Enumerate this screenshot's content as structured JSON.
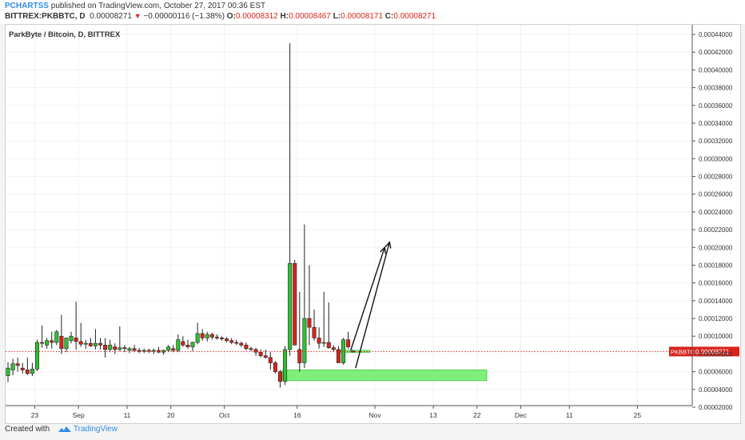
{
  "header": {
    "author": "PCHARTSS",
    "published": "published on TradingView.com, October 27, 2017 00:36 EST",
    "symbol": "BITTREX:PKBBTC, D",
    "last": "0.00008271",
    "arrow": "▼",
    "change": "−0.00000116 (−1.38%)",
    "o_label": "O:",
    "o_value": "0.00008312",
    "h_label": "H:",
    "h_value": "0.00008467",
    "l_label": "L:",
    "l_value": "0.00008171",
    "c_label": "C:",
    "c_value": "0.00008271"
  },
  "footer": {
    "created": "Created with",
    "brand": "TradingView"
  },
  "colors": {
    "up": "#30c030",
    "down": "#d8241c",
    "zone": "#7ef07a",
    "price_tag": "#d8241c",
    "accent": "#2f8de4"
  },
  "chart_data": {
    "type": "candlestick",
    "title": "ParkByte / Bitcoin, D, BITTREX",
    "current_price": 8.271e-05,
    "current_price_label": "0.00008271",
    "current_price_symbol": "PKBBTC",
    "ylim": [
      1.4e-05,
      0.000445
    ],
    "y_ticks": [
      2e-05,
      4e-05,
      6e-05,
      8e-05,
      0.0001,
      0.00012,
      0.00014,
      0.00016,
      0.00018,
      0.0002,
      0.00022,
      0.00024,
      0.00026,
      0.00028,
      0.0003,
      0.00032,
      0.00034,
      0.00036,
      0.00038,
      0.0004,
      0.00042,
      0.00044
    ],
    "y_tick_labels": [
      "0.00002000",
      "0.00004000",
      "0.00006000",
      "0.00008000",
      "0.00010000",
      "0.00012000",
      "0.00014000",
      "0.00016000",
      "0.00018000",
      "0.00020000",
      "0.00022000",
      "0.00024000",
      "0.00026000",
      "0.00028000",
      "0.00030000",
      "0.00032000",
      "0.00034000",
      "0.00036000",
      "0.00038000",
      "0.00040000",
      "0.00042000",
      "0.00044000"
    ],
    "x_ticks": [
      {
        "date": "2017-08-23",
        "label": "23"
      },
      {
        "date": "2017-09-01",
        "label": "Sep"
      },
      {
        "date": "2017-09-11",
        "label": "11"
      },
      {
        "date": "2017-09-20",
        "label": "20"
      },
      {
        "date": "2017-10-01",
        "label": "Oct"
      },
      {
        "date": "2017-10-16",
        "label": "16"
      },
      {
        "date": "2017-11-01",
        "label": "Nov"
      },
      {
        "date": "2017-11-13",
        "label": "13"
      },
      {
        "date": "2017-11-22",
        "label": "22"
      },
      {
        "date": "2017-12-01",
        "label": "Dec"
      },
      {
        "date": "2017-12-11",
        "label": "11"
      },
      {
        "date": "2017-12-25",
        "label": "25"
      }
    ],
    "xlim": [
      "2017-08-17",
      "2017-12-25"
    ],
    "candles": [
      {
        "date": "2017-08-17",
        "o": 5.55e-05,
        "h": 7.05e-05,
        "l": 4.85e-05,
        "c": 6.4e-05
      },
      {
        "date": "2017-08-18",
        "o": 6.2e-05,
        "h": 7.45e-05,
        "l": 5.6e-05,
        "c": 6.9e-05
      },
      {
        "date": "2017-08-19",
        "o": 6.9e-05,
        "h": 7.6e-05,
        "l": 6e-05,
        "c": 6.7e-05
      },
      {
        "date": "2017-08-20",
        "o": 6.4e-05,
        "h": 7e-05,
        "l": 5.8e-05,
        "c": 6.2e-05
      },
      {
        "date": "2017-08-21",
        "o": 6.2e-05,
        "h": 7.6e-05,
        "l": 5.6e-05,
        "c": 5.8e-05
      },
      {
        "date": "2017-08-22",
        "o": 5.8e-05,
        "h": 7e-05,
        "l": 5.5e-05,
        "c": 6.3e-05
      },
      {
        "date": "2017-08-23",
        "o": 6.3e-05,
        "h": 9.6e-05,
        "l": 6.1e-05,
        "c": 9.3e-05
      },
      {
        "date": "2017-08-24",
        "o": 9.3e-05,
        "h": 0.000112,
        "l": 8.7e-05,
        "c": 9.2e-05
      },
      {
        "date": "2017-08-25",
        "o": 9e-05,
        "h": 9.8e-05,
        "l": 8.6e-05,
        "c": 9.5e-05
      },
      {
        "date": "2017-08-26",
        "o": 9.5e-05,
        "h": 0.000105,
        "l": 8.6e-05,
        "c": 9.3e-05
      },
      {
        "date": "2017-08-27",
        "o": 9.3e-05,
        "h": 0.000107,
        "l": 9e-05,
        "c": 0.000105
      },
      {
        "date": "2017-08-28",
        "o": 0.0001,
        "h": 0.000124,
        "l": 8e-05,
        "c": 8.6e-05
      },
      {
        "date": "2017-08-29",
        "o": 8.6e-05,
        "h": 9.8e-05,
        "l": 8.2e-05,
        "c": 9.8e-05
      },
      {
        "date": "2017-08-30",
        "o": 9.5e-05,
        "h": 0.000105,
        "l": 9.2e-05,
        "c": 0.0001
      },
      {
        "date": "2017-08-31",
        "o": 9.8e-05,
        "h": 0.000139,
        "l": 8.5e-05,
        "c": 9.4e-05
      },
      {
        "date": "2017-09-01",
        "o": 9.4e-05,
        "h": 0.000115,
        "l": 8.8e-05,
        "c": 9.1e-05
      },
      {
        "date": "2017-09-02",
        "o": 9.1e-05,
        "h": 9.6e-05,
        "l": 8.6e-05,
        "c": 9.2e-05
      },
      {
        "date": "2017-09-03",
        "o": 9.2e-05,
        "h": 9.8e-05,
        "l": 8.8e-05,
        "c": 8.9e-05
      },
      {
        "date": "2017-09-04",
        "o": 8.9e-05,
        "h": 0.000108,
        "l": 8.5e-05,
        "c": 9.2e-05
      },
      {
        "date": "2017-09-05",
        "o": 9.2e-05,
        "h": 9.8e-05,
        "l": 8.5e-05,
        "c": 9e-05
      },
      {
        "date": "2017-09-06",
        "o": 9e-05,
        "h": 9.8e-05,
        "l": 7.6e-05,
        "c": 8.5e-05
      },
      {
        "date": "2017-09-07",
        "o": 8.5e-05,
        "h": 9.6e-05,
        "l": 8.2e-05,
        "c": 9e-05
      },
      {
        "date": "2017-09-08",
        "o": 8.8e-05,
        "h": 9.2e-05,
        "l": 8e-05,
        "c": 8.5e-05
      },
      {
        "date": "2017-09-09",
        "o": 8.5e-05,
        "h": 0.000111,
        "l": 8.3e-05,
        "c": 8.7e-05
      },
      {
        "date": "2017-09-10",
        "o": 8.7e-05,
        "h": 9e-05,
        "l": 8.2e-05,
        "c": 8.6e-05
      },
      {
        "date": "2017-09-11",
        "o": 8.4e-05,
        "h": 8.8e-05,
        "l": 8.1e-05,
        "c": 8.6e-05
      },
      {
        "date": "2017-09-12",
        "o": 8.6e-05,
        "h": 9e-05,
        "l": 8.2e-05,
        "c": 8.4e-05
      },
      {
        "date": "2017-09-13",
        "o": 8.4e-05,
        "h": 8.7e-05,
        "l": 8.1e-05,
        "c": 8.3e-05
      },
      {
        "date": "2017-09-14",
        "o": 8.3e-05,
        "h": 8.6e-05,
        "l": 8.1e-05,
        "c": 8.4e-05
      },
      {
        "date": "2017-09-15",
        "o": 8.4e-05,
        "h": 8.6e-05,
        "l": 8.1e-05,
        "c": 8.3e-05
      },
      {
        "date": "2017-09-16",
        "o": 8.3e-05,
        "h": 8.6e-05,
        "l": 8e-05,
        "c": 8.4e-05
      },
      {
        "date": "2017-09-17",
        "o": 8.4e-05,
        "h": 8.8e-05,
        "l": 8.1e-05,
        "c": 8.2e-05
      },
      {
        "date": "2017-09-18",
        "o": 8.2e-05,
        "h": 8.5e-05,
        "l": 7.9e-05,
        "c": 8.4e-05
      },
      {
        "date": "2017-09-19",
        "o": 8.4e-05,
        "h": 9e-05,
        "l": 8.2e-05,
        "c": 8.8e-05
      },
      {
        "date": "2017-09-20",
        "o": 8.6e-05,
        "h": 9e-05,
        "l": 8.2e-05,
        "c": 8.4e-05
      },
      {
        "date": "2017-09-21",
        "o": 8.4e-05,
        "h": 0.000102,
        "l": 8.2e-05,
        "c": 9.6e-05
      },
      {
        "date": "2017-09-22",
        "o": 9.4e-05,
        "h": 0.0001,
        "l": 8.8e-05,
        "c": 9e-05
      },
      {
        "date": "2017-09-23",
        "o": 9e-05,
        "h": 9.6e-05,
        "l": 8.6e-05,
        "c": 8.8e-05
      },
      {
        "date": "2017-09-24",
        "o": 8.8e-05,
        "h": 9.4e-05,
        "l": 8.3e-05,
        "c": 9.3e-05
      },
      {
        "date": "2017-09-25",
        "o": 9.3e-05,
        "h": 0.000115,
        "l": 9.1e-05,
        "c": 0.000103
      },
      {
        "date": "2017-09-26",
        "o": 0.000103,
        "h": 0.000108,
        "l": 9.5e-05,
        "c": 9.8e-05
      },
      {
        "date": "2017-09-27",
        "o": 9.8e-05,
        "h": 0.000105,
        "l": 9.4e-05,
        "c": 0.000102
      },
      {
        "date": "2017-09-28",
        "o": 0.000102,
        "h": 0.000104,
        "l": 9.6e-05,
        "c": 9.9e-05
      },
      {
        "date": "2017-09-29",
        "o": 9.9e-05,
        "h": 0.000102,
        "l": 9.6e-05,
        "c": 9.8e-05
      },
      {
        "date": "2017-09-30",
        "o": 9.8e-05,
        "h": 0.0001,
        "l": 9.5e-05,
        "c": 9.7e-05
      },
      {
        "date": "2017-10-01",
        "o": 9.7e-05,
        "h": 9.9e-05,
        "l": 9.3e-05,
        "c": 9.5e-05
      },
      {
        "date": "2017-10-02",
        "o": 9.5e-05,
        "h": 9.8e-05,
        "l": 9.1e-05,
        "c": 9.3e-05
      },
      {
        "date": "2017-10-03",
        "o": 9.3e-05,
        "h": 9.6e-05,
        "l": 9e-05,
        "c": 9.2e-05
      },
      {
        "date": "2017-10-04",
        "o": 9.2e-05,
        "h": 9.4e-05,
        "l": 8.8e-05,
        "c": 9e-05
      },
      {
        "date": "2017-10-05",
        "o": 9e-05,
        "h": 9.3e-05,
        "l": 8.4e-05,
        "c": 8.6e-05
      },
      {
        "date": "2017-10-06",
        "o": 8.6e-05,
        "h": 8.8e-05,
        "l": 8.3e-05,
        "c": 8.5e-05
      },
      {
        "date": "2017-10-07",
        "o": 8.5e-05,
        "h": 8.7e-05,
        "l": 7.8e-05,
        "c": 8.2e-05
      },
      {
        "date": "2017-10-08",
        "o": 8.2e-05,
        "h": 8.5e-05,
        "l": 7.6e-05,
        "c": 7.8e-05
      },
      {
        "date": "2017-10-09",
        "o": 7.8e-05,
        "h": 8.5e-05,
        "l": 7.5e-05,
        "c": 7.6e-05
      },
      {
        "date": "2017-10-10",
        "o": 7.6e-05,
        "h": 8.2e-05,
        "l": 6.2e-05,
        "c": 7e-05
      },
      {
        "date": "2017-10-11",
        "o": 7e-05,
        "h": 7.2e-05,
        "l": 5.8e-05,
        "c": 6e-05
      },
      {
        "date": "2017-10-12",
        "o": 6e-05,
        "h": 6.2e-05,
        "l": 4.2e-05,
        "c": 4.9e-05
      },
      {
        "date": "2017-10-13",
        "o": 4.9e-05,
        "h": 8.9e-05,
        "l": 4.5e-05,
        "c": 8.5e-05
      },
      {
        "date": "2017-10-14",
        "o": 8.5e-05,
        "h": 0.00043,
        "l": 7.8e-05,
        "c": 0.000182
      },
      {
        "date": "2017-10-15",
        "o": 0.000182,
        "h": 0.000186,
        "l": 9e-05,
        "c": 9e-05
      },
      {
        "date": "2017-10-16",
        "o": 8.5e-05,
        "h": 0.00015,
        "l": 6e-05,
        "c": 7e-05
      },
      {
        "date": "2017-10-17",
        "o": 7e-05,
        "h": 0.000226,
        "l": 6.4e-05,
        "c": 0.00012
      },
      {
        "date": "2017-10-18",
        "o": 0.00012,
        "h": 0.00018,
        "l": 9e-05,
        "c": 0.00011
      },
      {
        "date": "2017-10-19",
        "o": 0.00011,
        "h": 0.00013,
        "l": 9.5e-05,
        "c": 9.8e-05
      },
      {
        "date": "2017-10-20",
        "o": 9.8e-05,
        "h": 0.00011,
        "l": 8.6e-05,
        "c": 9.2e-05
      },
      {
        "date": "2017-10-21",
        "o": 9.2e-05,
        "h": 0.00015,
        "l": 8.8e-05,
        "c": 9.3e-05
      },
      {
        "date": "2017-10-22",
        "o": 9.3e-05,
        "h": 0.000138,
        "l": 8.6e-05,
        "c": 8.7e-05
      },
      {
        "date": "2017-10-23",
        "o": 8.7e-05,
        "h": 9e-05,
        "l": 8.2e-05,
        "c": 8.5e-05
      },
      {
        "date": "2017-10-24",
        "o": 8.5e-05,
        "h": 8.9e-05,
        "l": 7e-05,
        "c": 7e-05
      },
      {
        "date": "2017-10-25",
        "o": 7e-05,
        "h": 9.8e-05,
        "l": 6.8e-05,
        "c": 9.6e-05
      },
      {
        "date": "2017-10-26",
        "o": 9.6e-05,
        "h": 0.000105,
        "l": 8.6e-05,
        "c": 8.8e-05
      },
      {
        "date": "2017-10-27",
        "o": 8.31e-05,
        "h": 8.47e-05,
        "l": 8.17e-05,
        "c": 8.27e-05
      }
    ],
    "zones": [
      {
        "from": "2017-10-13",
        "to": "2017-11-24",
        "low": 5e-05,
        "high": 6.2e-05
      },
      {
        "from": "2017-10-25",
        "to": "2017-10-31",
        "low": 8.18e-05,
        "high": 8.4e-05
      }
    ],
    "arrows": [
      {
        "from": {
          "date": "2017-10-27",
          "price": 8.4e-05
        },
        "to": {
          "date": "2017-11-03",
          "price": 0.0002
        }
      },
      {
        "from": {
          "date": "2017-10-28",
          "price": 6.4e-05
        },
        "to": {
          "date": "2017-11-04",
          "price": 0.000206
        }
      }
    ]
  }
}
